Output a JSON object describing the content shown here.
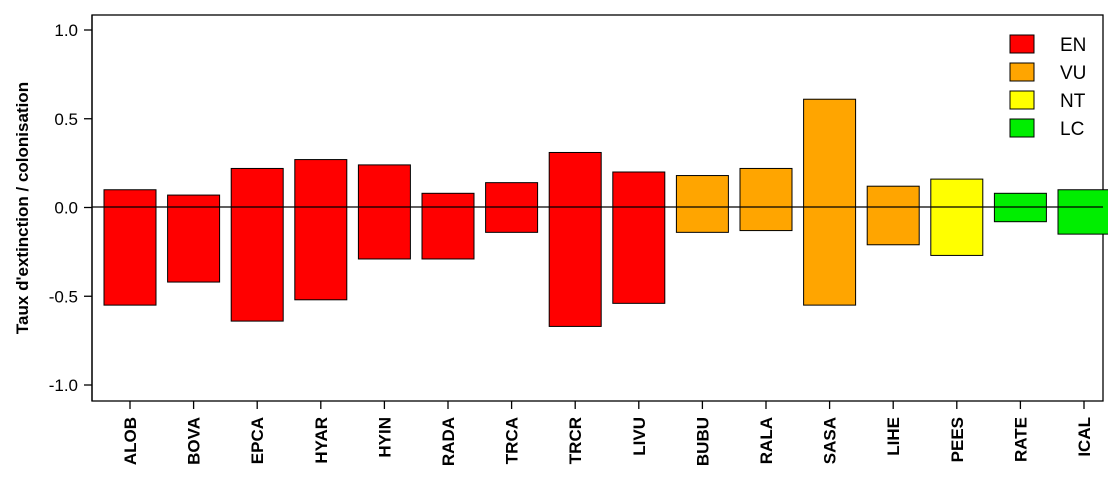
{
  "chart_data": {
    "type": "bar",
    "ylabel": "Taux d'extinction / colonisation",
    "ylim": [
      -1.1,
      1.1
    ],
    "yticks": [
      "1.0",
      "0.5",
      "0.0",
      "-0.5",
      "-1.0"
    ],
    "ytick_values": [
      1.0,
      0.5,
      0.0,
      -0.5,
      -1.0
    ],
    "categories": [
      "ALOB",
      "BOVA",
      "EPCA",
      "HYAR",
      "HYIN",
      "RADA",
      "TRCA",
      "TRCR",
      "LIVU",
      "BUBU",
      "RALA",
      "SASA",
      "LIHE",
      "PEES",
      "RATE",
      "ICAL"
    ],
    "series": [
      {
        "values_top": [
          0.1,
          0.07,
          0.22,
          0.27,
          0.24,
          0.08,
          0.14,
          0.31,
          0.2,
          0.18,
          0.22,
          0.61,
          0.12,
          0.16,
          0.08,
          0.1
        ]
      },
      {
        "values_bottom": [
          -0.55,
          -0.42,
          -0.64,
          -0.52,
          -0.29,
          -0.29,
          -0.14,
          -0.67,
          -0.54,
          -0.14,
          -0.13,
          -0.55,
          -0.21,
          -0.27,
          -0.08,
          -0.15
        ]
      }
    ],
    "status": [
      "EN",
      "EN",
      "EN",
      "EN",
      "EN",
      "EN",
      "EN",
      "EN",
      "EN",
      "VU",
      "VU",
      "VU",
      "VU",
      "NT",
      "LC",
      "LC"
    ],
    "legend": {
      "placement": "top-right",
      "entries": [
        {
          "label": "EN",
          "color": "#ff0000"
        },
        {
          "label": "VU",
          "color": "#ffa500"
        },
        {
          "label": "NT",
          "color": "#ffff00"
        },
        {
          "label": "LC",
          "color": "#00ee00"
        }
      ]
    },
    "zero_line": true,
    "grid": false
  }
}
